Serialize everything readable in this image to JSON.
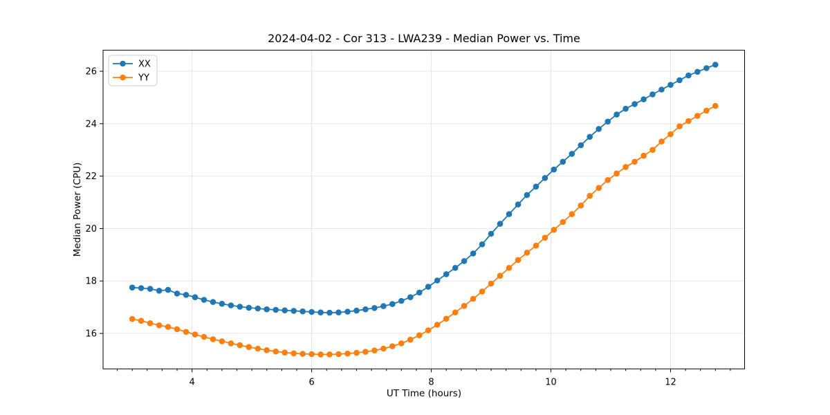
{
  "figure": {
    "title": "2024-04-02 - Cor 313 - LWA239 - Median Power vs. Time"
  },
  "chart_data": {
    "type": "line",
    "title": "2024-04-02 - Cor 313 - LWA239 - Median Power vs. Time",
    "xlabel": "UT Time (hours)",
    "ylabel": "Median Power (CPU)",
    "xlim": [
      2.5125,
      13.2375
    ],
    "ylim": [
      14.6475,
      26.8025
    ],
    "xticks": [
      4,
      6,
      8,
      10,
      12
    ],
    "yticks": [
      16,
      18,
      20,
      22,
      24,
      26
    ],
    "minor_xtick_step": 0.25,
    "grid": true,
    "grid_color": "#e4e4e4",
    "legend_position": "upper-left",
    "legend_labels": [
      "XX",
      "YY"
    ],
    "marker": "circle",
    "x": [
      3.0,
      3.15,
      3.3,
      3.45,
      3.6,
      3.75,
      3.9,
      4.05,
      4.2,
      4.35,
      4.5,
      4.65,
      4.8,
      4.95,
      5.1,
      5.25,
      5.4,
      5.55,
      5.7,
      5.85,
      6.0,
      6.15,
      6.3,
      6.45,
      6.6,
      6.75,
      6.9,
      7.05,
      7.2,
      7.35,
      7.5,
      7.65,
      7.8,
      7.95,
      8.1,
      8.25,
      8.4,
      8.55,
      8.7,
      8.85,
      9.0,
      9.15,
      9.3,
      9.45,
      9.6,
      9.75,
      9.9,
      10.05,
      10.2,
      10.35,
      10.5,
      10.65,
      10.8,
      10.95,
      11.1,
      11.25,
      11.4,
      11.55,
      11.7,
      11.85,
      12.0,
      12.15,
      12.3,
      12.45,
      12.6,
      12.75
    ],
    "series": [
      {
        "name": "XX",
        "color": "#1f77b4",
        "values": [
          17.75,
          17.73,
          17.7,
          17.63,
          17.66,
          17.52,
          17.47,
          17.38,
          17.28,
          17.2,
          17.13,
          17.07,
          17.02,
          16.98,
          16.95,
          16.92,
          16.9,
          16.88,
          16.86,
          16.84,
          16.82,
          16.8,
          16.79,
          16.8,
          16.83,
          16.87,
          16.92,
          16.97,
          17.04,
          17.12,
          17.24,
          17.38,
          17.56,
          17.78,
          18.02,
          18.26,
          18.5,
          18.76,
          19.05,
          19.4,
          19.8,
          20.18,
          20.55,
          20.92,
          21.28,
          21.6,
          21.93,
          22.25,
          22.55,
          22.85,
          23.18,
          23.5,
          23.8,
          24.08,
          24.35,
          24.57,
          24.75,
          24.93,
          25.12,
          25.3,
          25.48,
          25.66,
          25.84,
          25.98,
          26.12,
          26.25
        ]
      },
      {
        "name": "YY",
        "color": "#ff7f0e",
        "values": [
          16.55,
          16.48,
          16.39,
          16.31,
          16.25,
          16.16,
          16.06,
          15.96,
          15.87,
          15.78,
          15.7,
          15.62,
          15.55,
          15.48,
          15.42,
          15.36,
          15.31,
          15.27,
          15.24,
          15.22,
          15.21,
          15.2,
          15.2,
          15.21,
          15.23,
          15.26,
          15.3,
          15.35,
          15.42,
          15.51,
          15.62,
          15.76,
          15.93,
          16.12,
          16.33,
          16.56,
          16.8,
          17.05,
          17.32,
          17.6,
          17.9,
          18.2,
          18.5,
          18.8,
          19.08,
          19.35,
          19.65,
          19.95,
          20.25,
          20.55,
          20.88,
          21.25,
          21.55,
          21.85,
          22.1,
          22.35,
          22.55,
          22.78,
          23.0,
          23.32,
          23.6,
          23.9,
          24.1,
          24.3,
          24.5,
          24.68
        ]
      }
    ]
  }
}
